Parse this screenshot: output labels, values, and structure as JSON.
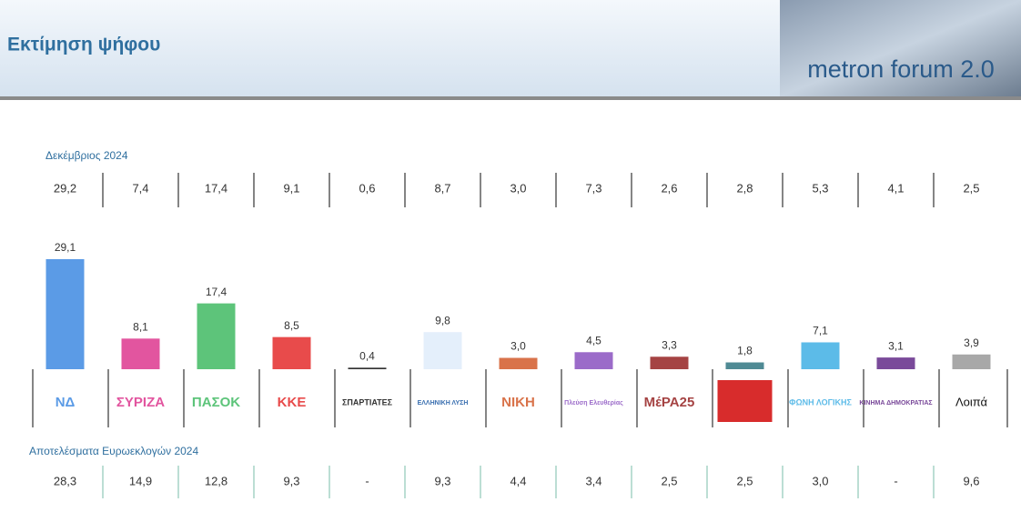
{
  "header": {
    "title": "Εκτίμηση ψήφου",
    "brand": "metron forum 2.0"
  },
  "chart_data": {
    "type": "bar",
    "categories": [
      "ΝΔ",
      "ΣΥΡΙΖΑ",
      "ΠΑΣΟΚ",
      "ΚΚΕ",
      "ΣΠΑΡΤΙΑΤΕΣ",
      "ΕΛΛΗΝΙΚΗ ΛΥΣΗ",
      "ΝΙΚΗ",
      "Πλεύση Ελευθερίας",
      "ΜέΡΑ25",
      null,
      "ΦΩΝΗ ΛΟΓΙΚΗΣ",
      "ΚΙΝΗΜΑ ΔΗΜΟΚΡΑΤΙΑΣ",
      "Λοιπά"
    ],
    "values": [
      29.1,
      8.1,
      17.4,
      8.5,
      0.4,
      9.8,
      3.0,
      4.5,
      3.3,
      1.8,
      7.1,
      3.1,
      3.9
    ],
    "value_labels": [
      "29,1",
      "8,1",
      "17,4",
      "8,5",
      "0,4",
      "9,8",
      "3,0",
      "4,5",
      "3,3",
      "1,8",
      "7,1",
      "3,1",
      "3,9"
    ],
    "colors": [
      "#5b9be6",
      "#e2559f",
      "#5dc47a",
      "#e84b4b",
      "#333333",
      "#e4effb",
      "#d9734a",
      "#9b6bc9",
      "#a54343",
      "#4f8a94",
      "#5cbbe8",
      "#7a4a9a",
      "#a8a8a8"
    ],
    "rows": [
      {
        "label": "Δεκέμβριος 2024",
        "values": [
          29.2,
          7.4,
          17.4,
          9.1,
          0.6,
          8.7,
          3.0,
          7.3,
          2.6,
          2.8,
          5.3,
          4.1,
          2.5
        ],
        "value_labels": [
          "29,2",
          "7,4",
          "17,4",
          "9,1",
          "0,6",
          "8,7",
          "3,0",
          "7,3",
          "2,6",
          "2,8",
          "5,3",
          "4,1",
          "2,5"
        ]
      },
      {
        "label": "Αποτελέσματα Ευρωεκλογών 2024",
        "values": [
          28.3,
          14.9,
          12.8,
          9.3,
          null,
          9.3,
          4.4,
          3.4,
          2.5,
          2.5,
          3.0,
          null,
          9.6
        ],
        "value_labels": [
          "28,3",
          "14,9",
          "12,8",
          "9,3",
          "-",
          "9,3",
          "4,4",
          "3,4",
          "2,5",
          "2,5",
          "3,0",
          "-",
          "9,6"
        ]
      }
    ]
  }
}
